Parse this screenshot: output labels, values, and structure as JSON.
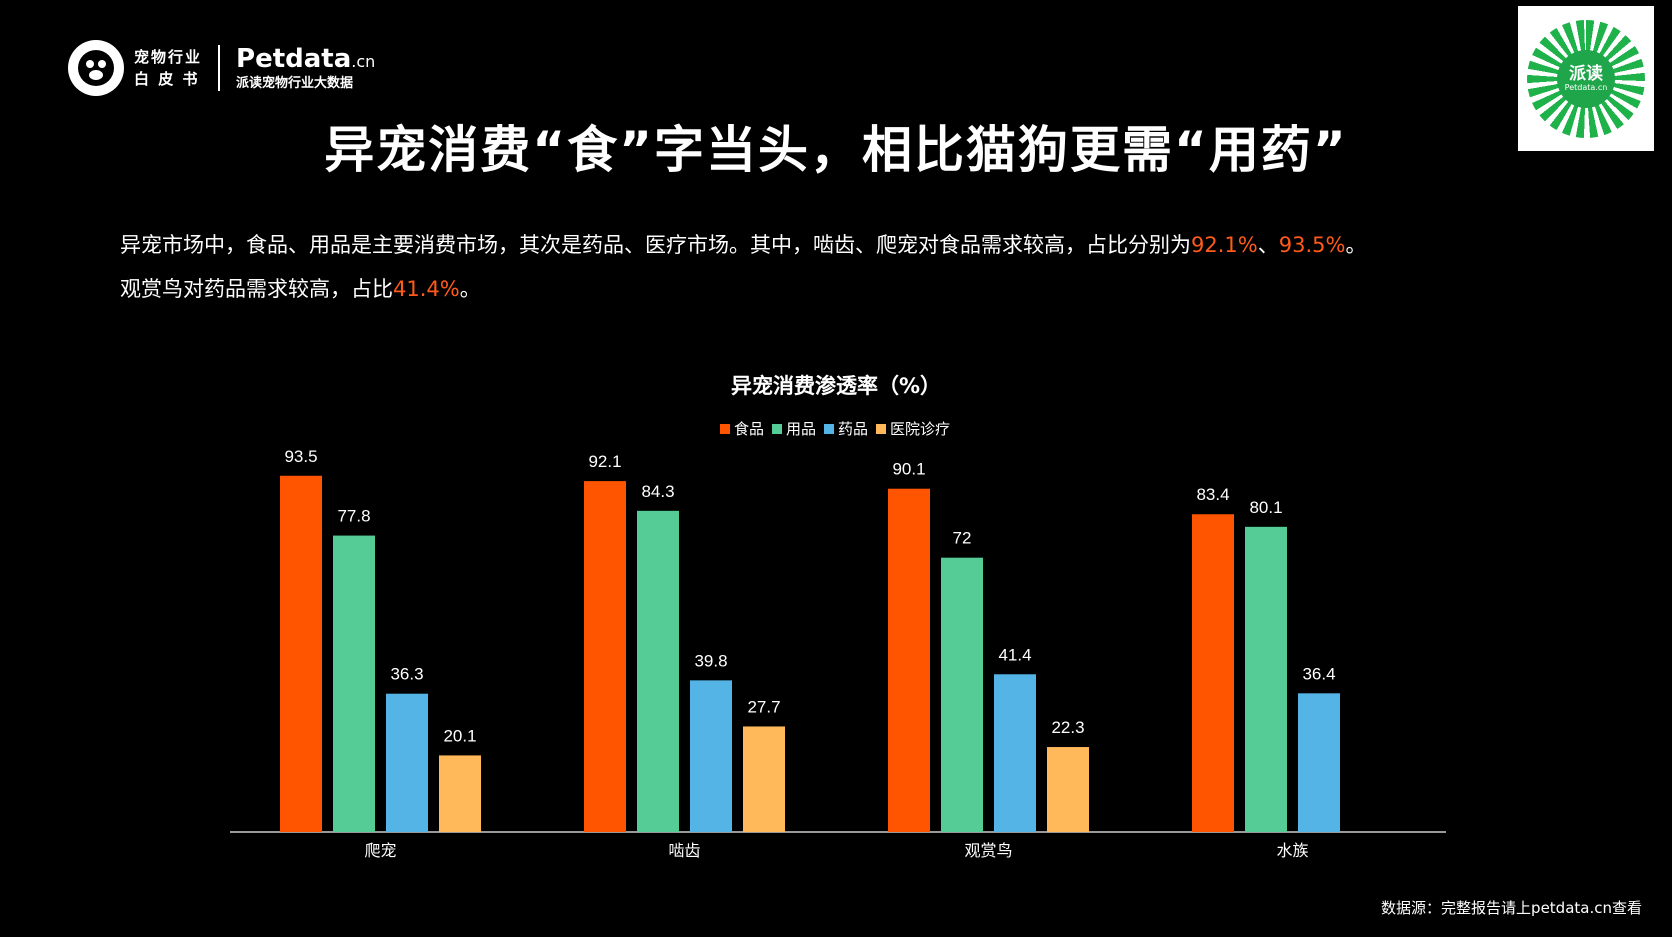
{
  "brand": {
    "line1": "宠物行业",
    "line2": "白 皮 书",
    "petdata_name": "Petdata",
    "petdata_suffix": ".cn",
    "petdata_sub": "派读宠物行业大数据"
  },
  "qr": {
    "title": "派读",
    "sub": "Petdata.cn"
  },
  "title": "异宠消费“食”字当头，相比猫狗更需“用药”",
  "description": {
    "p1_text": "异宠市场中，食品、用品是主要消费市场，其次是药品、医疗市场。其中，啮齿、爬宠对食品需求较高，占比分别为",
    "p1_hl1": "92.1%",
    "p1_sep": "、",
    "p1_hl2": "93.5%",
    "p1_end": "。",
    "p2_text": "观赏鸟对药品需求较高，占比",
    "p2_hl": "41.4%",
    "p2_end": "。"
  },
  "source": "数据源：完整报告请上petdata.cn查看",
  "chart_data": {
    "type": "bar",
    "title": "异宠消费渗透率（%）",
    "categories": [
      "爬宠",
      "啮齿",
      "观赏鸟",
      "水族"
    ],
    "series": [
      {
        "name": "食品",
        "color": "#ff5500",
        "values": [
          93.5,
          92.1,
          90.1,
          83.4
        ]
      },
      {
        "name": "用品",
        "color": "#55cc96",
        "values": [
          77.8,
          84.3,
          72,
          80.1
        ]
      },
      {
        "name": "药品",
        "color": "#55b4e6",
        "values": [
          36.3,
          39.8,
          41.4,
          36.4
        ]
      },
      {
        "name": "医院诊疗",
        "color": "#ffb95a",
        "values": [
          20.1,
          27.7,
          22.3,
          null
        ]
      }
    ],
    "ylim": [
      0,
      100
    ],
    "grid": false,
    "legend_position": "top"
  }
}
